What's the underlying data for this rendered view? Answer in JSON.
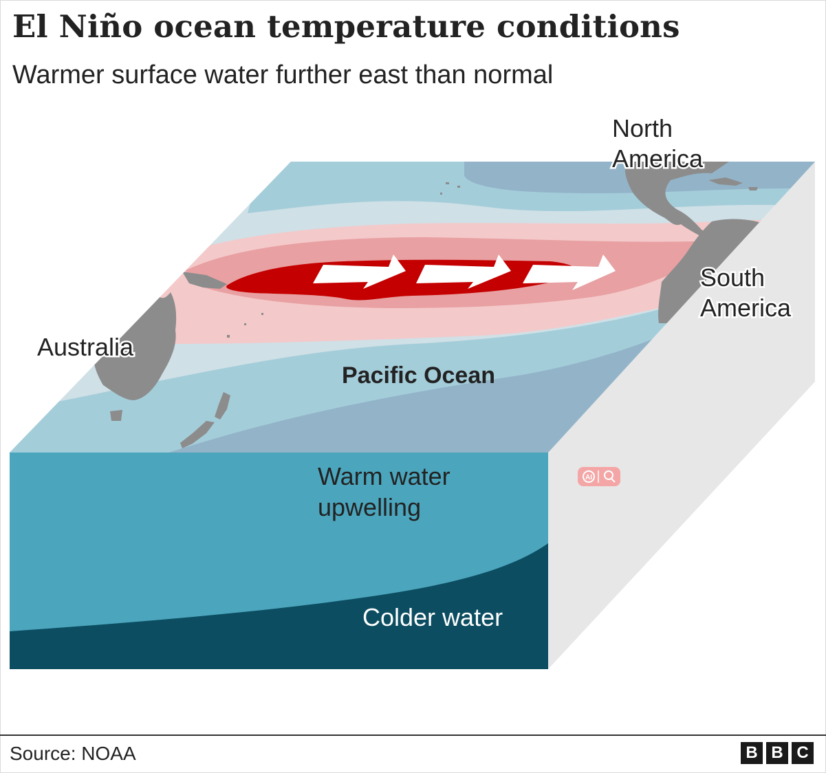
{
  "header": {
    "title": "El Niño ocean temperature conditions",
    "subtitle": "Warmer surface water further east than normal"
  },
  "labels": {
    "north_america": [
      "North",
      "America"
    ],
    "south_america": [
      "South",
      "America"
    ],
    "australia": "Australia",
    "pacific_ocean": "Pacific Ocean",
    "warm_water": [
      "Warm water",
      "upwelling"
    ],
    "colder_water": "Colder water",
    "ai_badge": "AI"
  },
  "footer": {
    "source": "Source: NOAA",
    "logo": [
      "B",
      "B",
      "C"
    ]
  },
  "colors": {
    "warm_core": "#c40000",
    "warm_mid": "#e8a0a2",
    "warm_light": "#f4c9ca",
    "cool_light": "#cfe0e6",
    "cool_mid": "#a4cdda",
    "cool_deep": "#93b4c8",
    "upper_water": "#4ba6bd",
    "deep_water": "#0c4d61",
    "land": "#8c8c8c",
    "side_face": "#e7e7e7"
  }
}
